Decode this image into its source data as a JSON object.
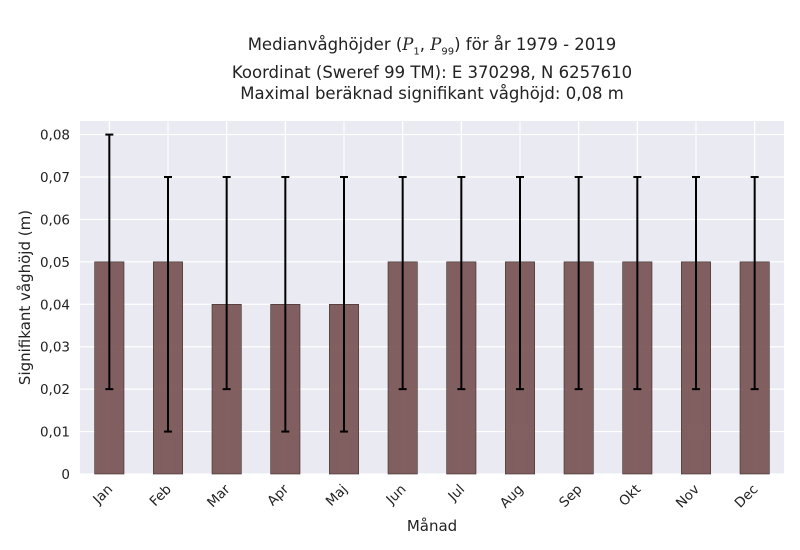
{
  "chart_title": {
    "line1_prefix": "Medianvåghöjder (",
    "p1": "P",
    "p1_sub": "1",
    "sep": ", ",
    "p2": "P",
    "p2_sub": "99",
    "line1_suffix": ") för år 1979 - 2019",
    "line2": "Koordinat (Sweref 99 TM): E 370298, N 6257610",
    "line3": "Maximal beräknad signifikant våghöjd: 0,08 m"
  },
  "chart_data": {
    "type": "bar",
    "categories": [
      "Jan",
      "Feb",
      "Mar",
      "Apr",
      "Maj",
      "Jun",
      "Jul",
      "Aug",
      "Sep",
      "Okt",
      "Nov",
      "Dec"
    ],
    "series": [
      {
        "values": [
          0.05,
          0.05,
          0.04,
          0.04,
          0.04,
          0.05,
          0.05,
          0.05,
          0.05,
          0.05,
          0.05,
          0.05
        ],
        "p1": [
          0.02,
          0.01,
          0.02,
          0.01,
          0.01,
          0.02,
          0.02,
          0.02,
          0.02,
          0.02,
          0.02,
          0.02
        ],
        "p99": [
          0.08,
          0.07,
          0.07,
          0.07,
          0.07,
          0.07,
          0.07,
          0.07,
          0.07,
          0.07,
          0.07,
          0.07
        ]
      }
    ],
    "xlabel": "Månad",
    "ylabel": "Signifikant våghöjd (m)",
    "ylim": [
      0,
      0.08
    ],
    "yticks": [
      0,
      0.01,
      0.02,
      0.03,
      0.04,
      0.05,
      0.06,
      0.07,
      0.08
    ],
    "ytick_labels": [
      "0",
      "0,01",
      "0,02",
      "0,03",
      "0,04",
      "0,05",
      "0,06",
      "0,07",
      "0,08"
    ],
    "grid": true,
    "colors": {
      "bar": "#7b5757",
      "errorbar": "#000000",
      "plot_background": "#eaeaf2",
      "grid": "#ffffff"
    }
  }
}
